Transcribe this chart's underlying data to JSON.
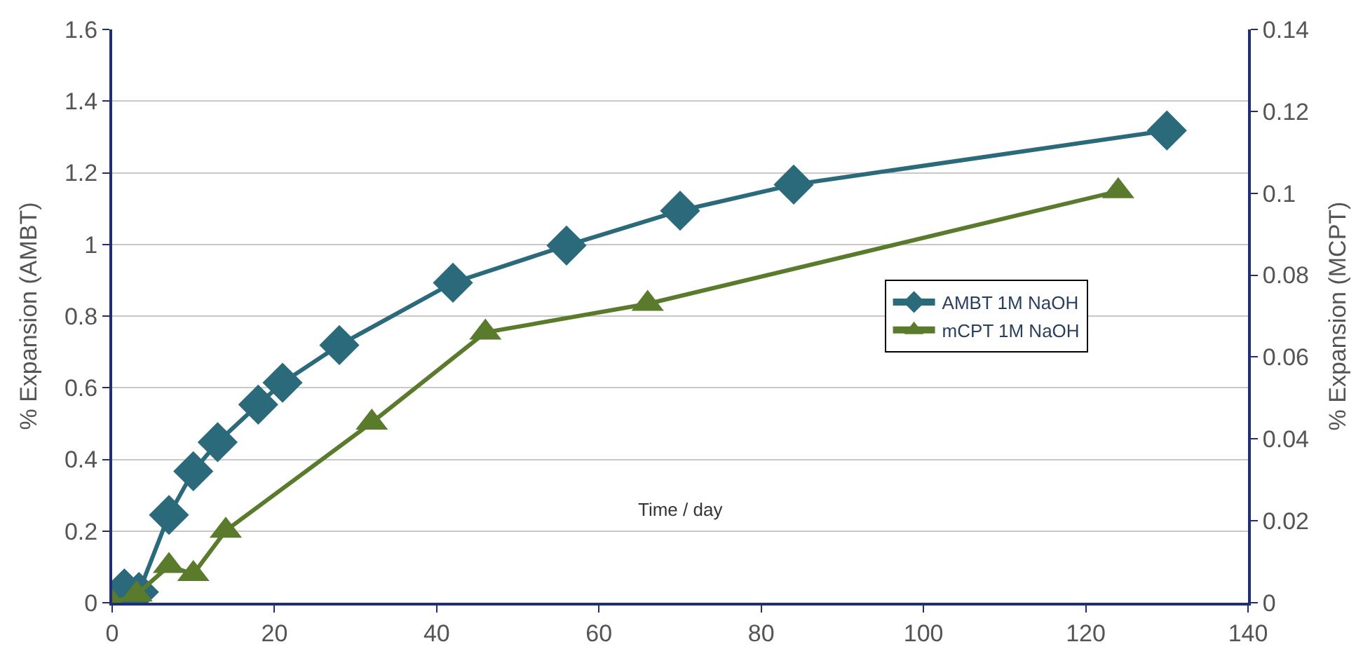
{
  "chart_data": {
    "type": "line",
    "xlabel": "Time / day",
    "ylabel": "% Expansion (AMBT)",
    "y2label": "% Expansion (MCPT)",
    "series": [
      {
        "name": "AMBT 1M NaOH",
        "color": "#2b6a7a",
        "marker": "diamond",
        "x": [
          0,
          1.5,
          3.3,
          7,
          10,
          13,
          18,
          21,
          28,
          42,
          56,
          70,
          84,
          130
        ],
        "values": [
          0,
          0.04,
          0.03,
          0.245,
          0.367,
          0.448,
          0.553,
          0.614,
          0.719,
          0.893,
          0.997,
          1.094,
          1.167,
          1.318
        ]
      },
      {
        "name": "mCPT 1M NaOH",
        "color": "#5a7a2c",
        "marker": "triangle",
        "axis": "y2",
        "x": [
          0,
          3,
          7,
          10,
          14,
          32,
          46,
          66,
          124
        ],
        "values": [
          0,
          0.002,
          0.009,
          0.007,
          0.0176,
          0.044,
          0.066,
          0.073,
          0.1005
        ]
      }
    ],
    "xlim": [
      0,
      140
    ],
    "xticks": [
      0,
      20,
      40,
      60,
      80,
      100,
      120,
      140
    ],
    "ylim": [
      0,
      1.6
    ],
    "yticks": [
      0,
      0.2,
      0.4,
      0.6,
      0.8,
      1,
      1.2,
      1.4,
      1.6
    ],
    "y2lim": [
      0,
      0.14
    ],
    "y2ticks": [
      0,
      0.02,
      0.04,
      0.06,
      0.08,
      0.1,
      0.12,
      0.14
    ],
    "grid": "y",
    "legend": "right"
  }
}
